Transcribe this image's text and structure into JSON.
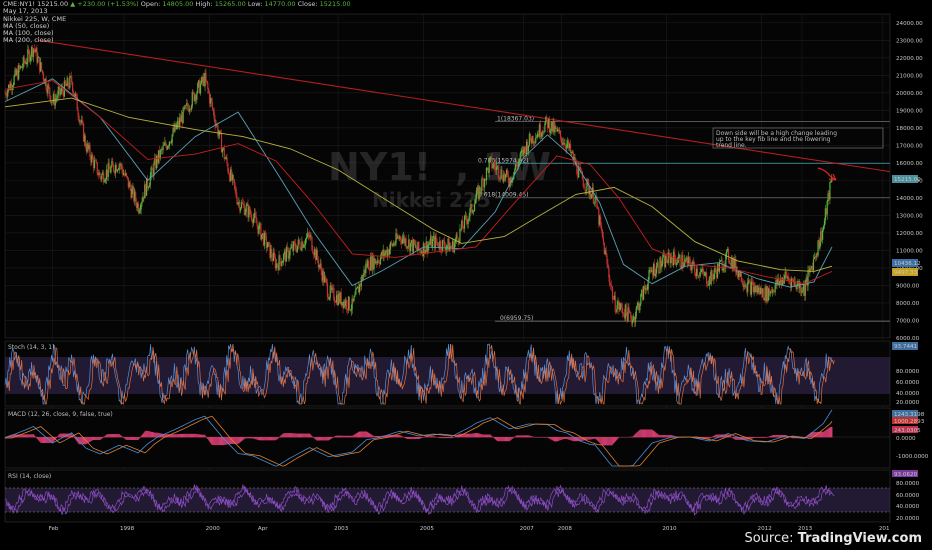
{
  "header": {
    "symbol_line": "CME:NY1! 15215.00",
    "change": "▲ +230.00 (+1.53%)",
    "open_label": "Open:",
    "open": "14805.00",
    "high_label": "High:",
    "high": "15265.00",
    "low_label": "Low:",
    "low": "14770.00",
    "close_label": "Close:",
    "close": "15215.00",
    "date": "May 17, 2013"
  },
  "main_panel": {
    "title": "Nikkei 225, W, CME",
    "legend": [
      "MA (50, close)",
      "MA (100, close)",
      "MA (200, close)"
    ],
    "watermark_symbol": "NY1!",
    "watermark_symbol_tail": ", 1W",
    "watermark_name": "Nikkei 225",
    "annotation": "Down side will be a high change leading up to the key fib line and the lowering trend line.",
    "fib_labels": [
      "1(18367.03)",
      "0.786(15974.92)",
      "0.618(14009.45)",
      "0(6959.75)"
    ],
    "price_tags": [
      "15215.00",
      "10436.12",
      "9497.33"
    ],
    "colors": {
      "ma50": "#5aa0b4",
      "ma100": "#c81e1e",
      "ma200": "#b8b43c",
      "trend": "#b41e1e",
      "fib": "#6e6e6e",
      "fib_highlight": "#3d8fa0",
      "up": "#5ab43c",
      "down": "#c83232"
    }
  },
  "stoch_panel": {
    "title": "Stoch (14, 3, 1)",
    "tag": "93.7441",
    "ticks": [
      "80.0000",
      "60.0000",
      "40.0000",
      "20.0000"
    ]
  },
  "macd_panel": {
    "title": "MACD (12, 26, close, 9, false, true)",
    "tags": [
      "1243.3198",
      "1000.2893",
      "243.0305"
    ],
    "ticks": [
      "0.0000",
      "-1000.0000"
    ]
  },
  "rsi_panel": {
    "title": "RSI (14, close)",
    "tag": "93.0620",
    "ticks": [
      "80.0000",
      "60.0000",
      "40.0000",
      "20.0000"
    ]
  },
  "source": {
    "prefix": "Source: ",
    "brand": "TradingView.com"
  },
  "chart_data": {
    "type": "line",
    "title": "Nikkei 225, W, CME",
    "x_ticks": [
      "Feb",
      "1998",
      "2000",
      "Apr",
      "2003",
      "2005",
      "2007",
      "2008",
      "2010",
      "2012",
      "2013",
      "201"
    ],
    "y_ticks": [
      "24000.00",
      "23000.00",
      "22000.00",
      "21000.00",
      "20000.00",
      "19000.00",
      "18000.00",
      "17000.00",
      "16000.00",
      "15000.00",
      "14000.00",
      "13000.00",
      "12000.00",
      "11000.00",
      "10000.00",
      "9000.00",
      "8000.00",
      "7000.00",
      "6000.00"
    ],
    "ylim": [
      6000,
      24500
    ],
    "xlim": [
      1996.0,
      2014.6
    ],
    "series": [
      {
        "x": [
          1996.0,
          1996.4,
          1996.6,
          1997.0,
          1997.4,
          1997.7,
          1998.0,
          1998.4,
          1998.8,
          1999.2,
          1999.6,
          2000.0,
          2000.2,
          2000.6,
          2000.9,
          2001.2,
          2001.7,
          2002.0,
          2002.4,
          2002.8,
          2003.0,
          2003.3,
          2003.6,
          2003.9,
          2004.3,
          2004.7,
          2005.0,
          2005.4,
          2005.8,
          2006.2,
          2006.6,
          2007.0,
          2007.4,
          2007.8,
          2008.1,
          2008.4,
          2008.8,
          2009.2,
          2009.6,
          2010.0,
          2010.4,
          2010.8,
          2011.2,
          2011.6,
          2012.0,
          2012.4,
          2012.8,
          2013.0,
          2013.2,
          2013.38
        ],
        "y": [
          20000,
          21700,
          22600,
          19500,
          20700,
          17000,
          15200,
          16000,
          13500,
          16200,
          18000,
          20000,
          20800,
          16500,
          13800,
          13000,
          10200,
          11000,
          11800,
          8600,
          8300,
          7800,
          10200,
          10600,
          11800,
          11000,
          11500,
          11200,
          13300,
          16000,
          15000,
          17200,
          18300,
          17100,
          15200,
          14000,
          8000,
          7100,
          9900,
          10600,
          10200,
          9300,
          10700,
          9000,
          8500,
          9500,
          8800,
          10500,
          12300,
          15215
        ]
      },
      {
        "x": [
          1996.0,
          1997.0,
          1998.0,
          1999.0,
          2000.0,
          2000.9,
          2001.7,
          2002.5,
          2003.3,
          2003.9,
          2004.8,
          2005.6,
          2006.3,
          2006.9,
          2007.4,
          2007.9,
          2008.5,
          2009.0,
          2009.6,
          2010.3,
          2011.0,
          2011.8,
          2012.5,
          2013.0,
          2013.38
        ],
        "y": [
          19500,
          20800,
          18600,
          15000,
          17500,
          18900,
          15500,
          12000,
          9000,
          9800,
          11200,
          11100,
          13200,
          16300,
          17600,
          16400,
          13700,
          10200,
          9100,
          10100,
          10300,
          9400,
          8900,
          9200,
          11200
        ]
      },
      {
        "x": [
          1996.0,
          1997.0,
          1998.0,
          1999.0,
          2000.0,
          2000.9,
          2001.7,
          2002.5,
          2003.3,
          2004.2,
          2005.0,
          2005.9,
          2006.8,
          2007.6,
          2008.3,
          2008.9,
          2009.6,
          2010.4,
          2011.2,
          2012.0,
          2012.8,
          2013.38
        ],
        "y": [
          20200,
          20700,
          18600,
          16200,
          16500,
          17100,
          16100,
          13600,
          10800,
          10600,
          10900,
          11200,
          14000,
          16400,
          15900,
          14000,
          11100,
          10200,
          10000,
          9500,
          9100,
          9800
        ]
      },
      {
        "x": [
          1996.0,
          1997.4,
          1998.6,
          2000.0,
          2001.0,
          2002.0,
          2003.0,
          2004.0,
          2005.0,
          2005.6,
          2006.5,
          2007.3,
          2008.0,
          2008.8,
          2009.6,
          2010.5,
          2011.4,
          2012.3,
          2013.0,
          2013.38
        ],
        "y": [
          19200,
          19700,
          18600,
          17900,
          17500,
          16800,
          15600,
          13900,
          12200,
          11400,
          11800,
          13100,
          14200,
          14600,
          13500,
          11500,
          10400,
          9900,
          9800,
          10100
        ]
      }
    ],
    "series_colors": [
      "#cfcfcf",
      "#5aa0b4",
      "#c81e1e",
      "#b8b43c"
    ],
    "trend_line": {
      "x": [
        1996.7,
        2014.6
      ],
      "y": [
        23000,
        15500
      ]
    },
    "fib_levels": [
      18367.03,
      15974.92,
      14009.45,
      6959.75
    ],
    "grid": true
  }
}
